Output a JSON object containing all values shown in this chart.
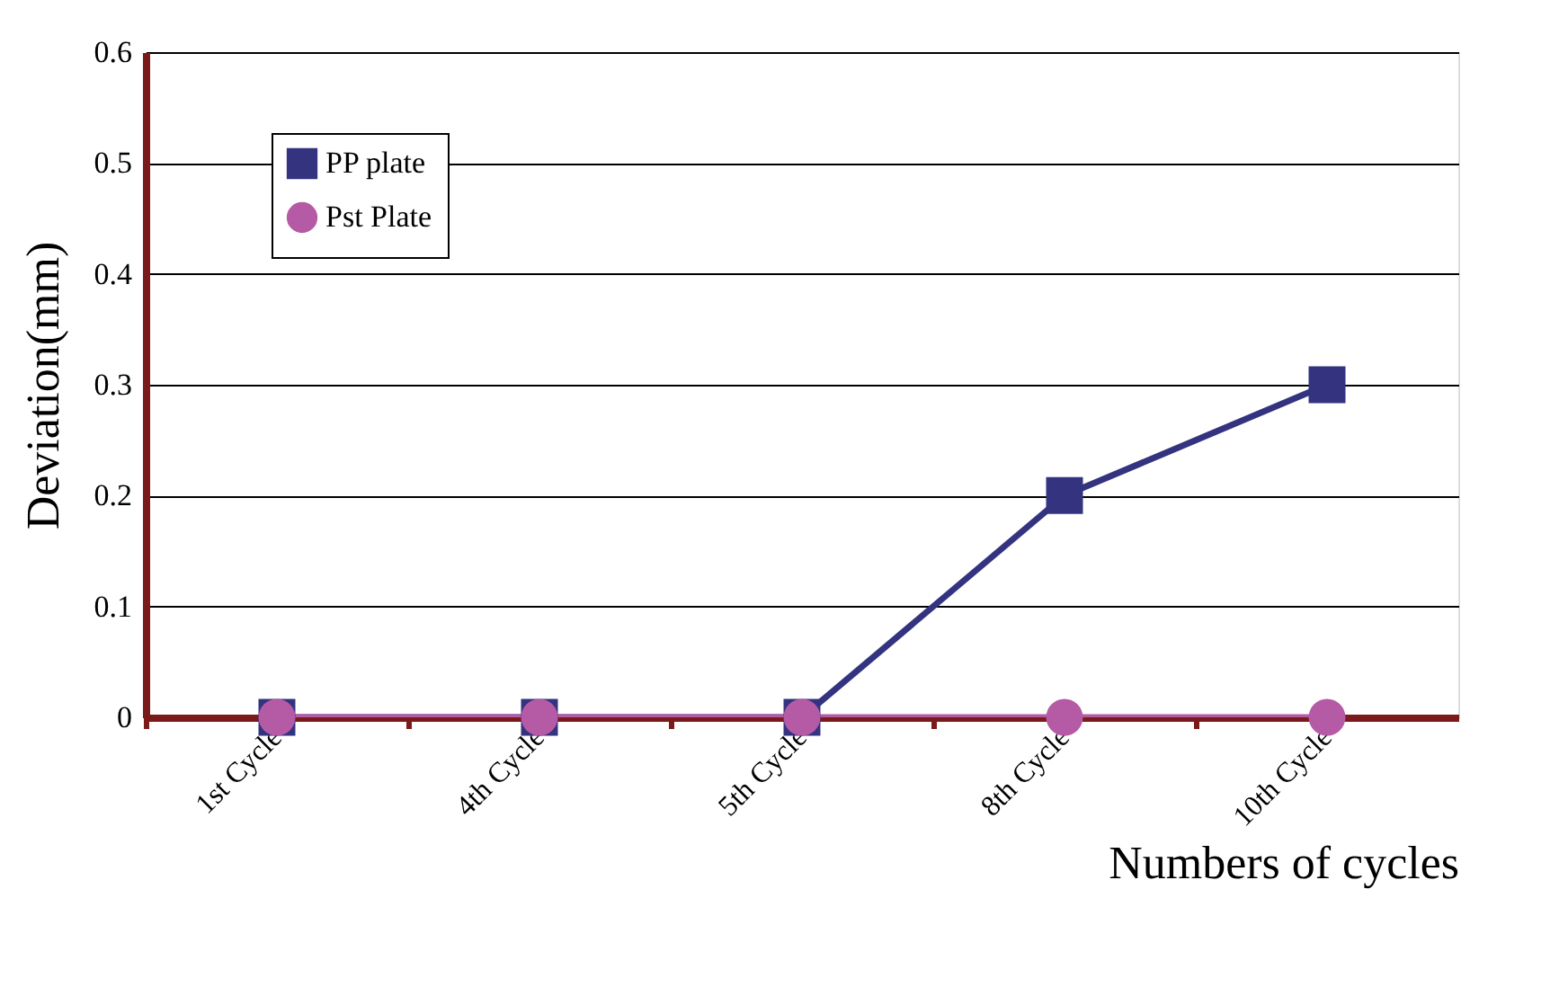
{
  "chart_data": {
    "type": "line",
    "xlabel": "Numbers of cycles",
    "ylabel": "Deviation(mm)",
    "categories": [
      "1st Cycle",
      "4th Cycle",
      "5th Cycle",
      "8th Cycle",
      "10th Cycle"
    ],
    "series": [
      {
        "name": "PP plate",
        "color": "#333380",
        "marker": "square",
        "values": [
          0,
          0,
          0,
          0.2,
          0.3
        ]
      },
      {
        "name": "Pst Plate",
        "color": "#b55aa5",
        "marker": "circle",
        "values": [
          0,
          0,
          0,
          0,
          0
        ]
      }
    ],
    "ylim": [
      0,
      0.6
    ],
    "yticks": [
      0,
      0.1,
      0.2,
      0.3,
      0.4,
      0.5,
      0.6
    ],
    "grid": "y",
    "legend": "top left",
    "line_style": "solid"
  }
}
